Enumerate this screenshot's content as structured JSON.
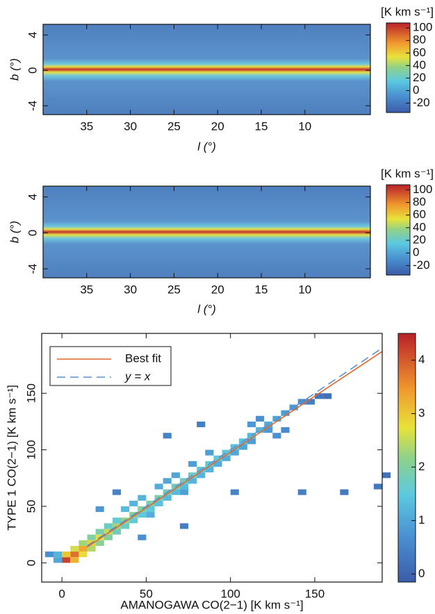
{
  "chart_data": [
    {
      "type": "heatmap",
      "colorbar_label": "[K km s⁻¹]",
      "xlabel": "l (°)",
      "ylabel": "b (°)",
      "xlim": [
        40,
        2.5
      ],
      "ylim": [
        -5,
        5.2
      ],
      "xticks": [
        35,
        30,
        25,
        20,
        15,
        10
      ],
      "yticks": [
        4,
        0,
        -4
      ],
      "clim": [
        -35,
        108
      ],
      "cticks": [
        100,
        80,
        60,
        40,
        20,
        0,
        -20
      ]
    },
    {
      "type": "heatmap",
      "colorbar_label": "[K km s⁻¹]",
      "xlabel": "l (°)",
      "ylabel": "b (°)",
      "xlim": [
        40,
        2.5
      ],
      "ylim": [
        -5,
        5.2
      ],
      "xticks": [
        35,
        30,
        25,
        20,
        15,
        10
      ],
      "yticks": [
        4,
        0,
        -4
      ],
      "clim": [
        -35,
        108
      ],
      "cticks": [
        100,
        80,
        60,
        40,
        20,
        0,
        -20
      ]
    },
    {
      "type": "hist2d",
      "xlabel": "AMANOGAWA CO(2−1) [K km s⁻¹]",
      "ylabel": "TYPE 1 CO(2−1) [K km s⁻¹]",
      "xlim": [
        -12,
        190
      ],
      "ylim": [
        -17,
        203
      ],
      "xticks": [
        0,
        50,
        100,
        150
      ],
      "yticks": [
        0,
        50,
        100,
        150
      ],
      "clim": [
        -0.15,
        4.5
      ],
      "cticks": [
        0,
        1,
        2,
        3,
        4
      ],
      "bin": 5,
      "cells": {
        "x": [
          0,
          5,
          0,
          5,
          10,
          10,
          5,
          15,
          15,
          10,
          20,
          20,
          15,
          25,
          25,
          20,
          30,
          30,
          25,
          35,
          35,
          30,
          40,
          40,
          35,
          45,
          45,
          50,
          50,
          45,
          55,
          55,
          60,
          60,
          55,
          65,
          65,
          70,
          70,
          65,
          75,
          75,
          80,
          80,
          75,
          85,
          85,
          90,
          90,
          85,
          95,
          95,
          100,
          100,
          105,
          105,
          110,
          110,
          115,
          120,
          120,
          125,
          130,
          135,
          140,
          145,
          150,
          155,
          60,
          80,
          100,
          140,
          165,
          185,
          190,
          -10,
          -5,
          -5,
          20,
          45,
          70,
          30,
          40,
          50,
          60,
          70,
          110,
          115,
          125,
          130
        ],
        "y": [
          0,
          5,
          5,
          0,
          10,
          5,
          10,
          15,
          10,
          15,
          20,
          15,
          20,
          25,
          20,
          25,
          30,
          25,
          30,
          35,
          30,
          35,
          40,
          35,
          45,
          45,
          40,
          50,
          45,
          55,
          55,
          50,
          60,
          55,
          65,
          65,
          60,
          70,
          65,
          75,
          75,
          70,
          80,
          75,
          85,
          85,
          80,
          90,
          85,
          95,
          95,
          90,
          100,
          95,
          105,
          100,
          110,
          105,
          115,
          120,
          115,
          125,
          130,
          135,
          140,
          140,
          145,
          145,
          110,
          120,
          60,
          60,
          60,
          65,
          75,
          5,
          0,
          5,
          45,
          20,
          30,
          60,
          50,
          40,
          70,
          60,
          120,
          125,
          110,
          115
        ],
        "values": [
          4.2,
          3.8,
          3.0,
          3.2,
          3.3,
          2.8,
          2.6,
          2.9,
          2.4,
          2.3,
          2.7,
          2.1,
          2.0,
          2.5,
          2.0,
          1.9,
          2.3,
          1.8,
          1.7,
          2.2,
          1.7,
          1.6,
          2.1,
          1.6,
          1.3,
          2.0,
          1.5,
          1.9,
          1.5,
          1.2,
          1.9,
          1.4,
          1.8,
          1.3,
          1.1,
          1.8,
          1.3,
          1.7,
          1.3,
          1.0,
          1.7,
          1.2,
          1.6,
          1.2,
          0.9,
          1.6,
          1.2,
          1.5,
          1.1,
          0.9,
          1.5,
          1.1,
          1.4,
          1.0,
          1.4,
          1.0,
          1.3,
          0.9,
          1.2,
          1.1,
          0.8,
          1.0,
          0.9,
          0.8,
          0.6,
          0.4,
          0.3,
          0.2,
          0.5,
          0.4,
          0.5,
          0.4,
          0.3,
          0.3,
          0.2,
          0.7,
          1.0,
          1.2,
          0.8,
          0.7,
          0.4,
          0.5,
          1.2,
          1.1,
          1.0,
          0.9,
          0.8,
          0.7,
          0.7,
          0.6
        ]
      },
      "series": [
        {
          "name": "Best fit",
          "color": "#e0662a",
          "style": "solid",
          "x": [
            15,
            190
          ],
          "y": [
            14,
            187
          ]
        },
        {
          "name": "y = x",
          "color": "#5a8fd0",
          "style": "dashed",
          "x": [
            15,
            190
          ],
          "y": [
            15,
            190
          ]
        }
      ]
    }
  ]
}
